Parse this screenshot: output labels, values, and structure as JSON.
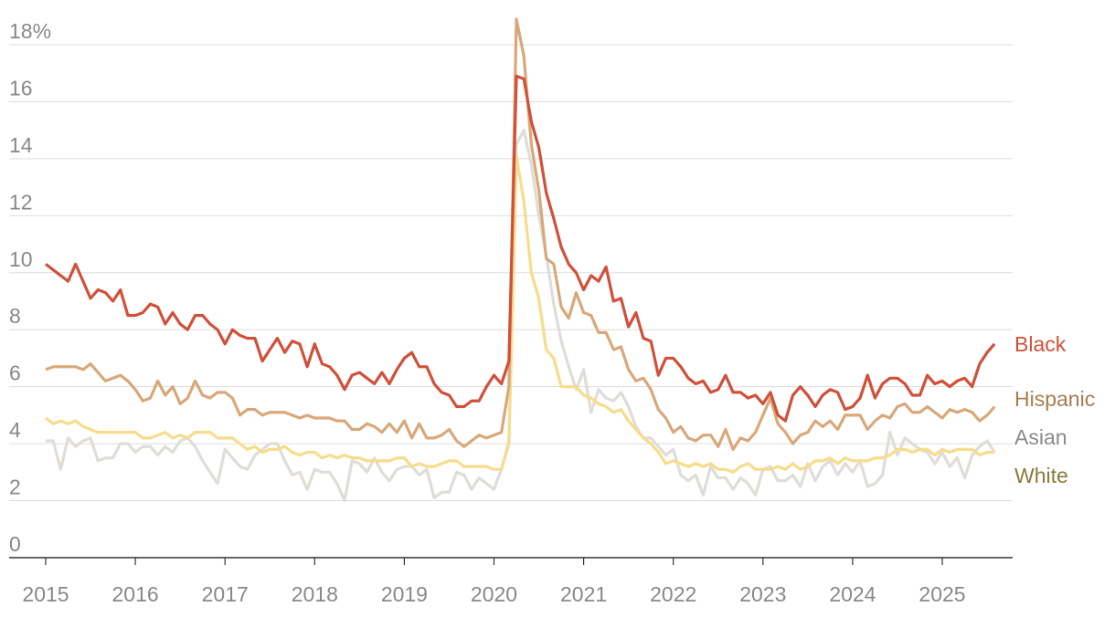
{
  "chart_data": {
    "type": "line",
    "categories": [
      "2015",
      null,
      null,
      null,
      null,
      null,
      null,
      null,
      null,
      null,
      null,
      null,
      "2016",
      null,
      null,
      null,
      null,
      null,
      null,
      null,
      null,
      null,
      null,
      null,
      "2017",
      null,
      null,
      null,
      null,
      null,
      null,
      null,
      null,
      null,
      null,
      null,
      "2018",
      null,
      null,
      null,
      null,
      null,
      null,
      null,
      null,
      null,
      null,
      null,
      "2019",
      null,
      null,
      null,
      null,
      null,
      null,
      null,
      null,
      null,
      null,
      null,
      "2020",
      null,
      null,
      null,
      null,
      null,
      null,
      null,
      null,
      null,
      null,
      null,
      "2021",
      null,
      null,
      null,
      null,
      null,
      null,
      null,
      null,
      null,
      null,
      null,
      "2022",
      null,
      null,
      null,
      null,
      null,
      null,
      null,
      null,
      null,
      null,
      null,
      "2023",
      null,
      null,
      null,
      null,
      null,
      null,
      null,
      null,
      null,
      null,
      null,
      "2024",
      null,
      null,
      null,
      null,
      null,
      null,
      null,
      null,
      null,
      null,
      null,
      "2025",
      null,
      null,
      null,
      null,
      null,
      null,
      null
    ],
    "ylim": [
      0,
      19.5
    ],
    "yticks": [
      0,
      2,
      4,
      6,
      8,
      10,
      12,
      14,
      16,
      {
        "value": 18,
        "label": "18%"
      }
    ],
    "grid": true,
    "series": [
      {
        "name": "Asian",
        "color": "#e0ddd8",
        "label_color": "#8a8a8a",
        "values": [
          4.1,
          4.1,
          3.1,
          4.2,
          3.9,
          4.1,
          4.2,
          3.4,
          3.5,
          3.5,
          4.0,
          4.0,
          3.7,
          3.9,
          3.9,
          3.6,
          3.9,
          3.7,
          4.1,
          4.2,
          3.9,
          3.4,
          3.0,
          2.6,
          3.8,
          3.5,
          3.2,
          3.1,
          3.6,
          3.8,
          4.0,
          4.0,
          3.4,
          2.9,
          3.0,
          2.4,
          3.1,
          3.0,
          3.0,
          2.6,
          2.0,
          3.4,
          3.3,
          3.0,
          3.5,
          3.0,
          2.7,
          3.1,
          3.2,
          3.2,
          2.9,
          3.1,
          2.1,
          2.3,
          2.3,
          3.0,
          2.9,
          2.4,
          2.8,
          2.6,
          2.4,
          3.1,
          4.1,
          14.5,
          15.0,
          13.8,
          12.0,
          10.6,
          8.9,
          7.6,
          6.7,
          5.9,
          6.6,
          5.1,
          5.9,
          5.6,
          5.5,
          5.8,
          5.3,
          4.6,
          4.2,
          4.2,
          3.9,
          3.6,
          3.8,
          2.9,
          2.7,
          2.9,
          2.2,
          3.2,
          2.8,
          2.8,
          2.4,
          2.8,
          2.6,
          2.2,
          3.1,
          3.2,
          2.7,
          2.7,
          2.9,
          2.5,
          3.3,
          2.7,
          3.2,
          3.4,
          2.9,
          3.3,
          3.0,
          3.4,
          2.5,
          2.6,
          2.9,
          4.4,
          3.6,
          4.2,
          4.0,
          3.8,
          3.7,
          3.3,
          3.7,
          3.2,
          3.5,
          2.8,
          3.6,
          3.9,
          4.1,
          3.7
        ]
      },
      {
        "name": "White",
        "color": "#f7dc8b",
        "label_color": "#8a7a3a",
        "values": [
          4.9,
          4.7,
          4.8,
          4.7,
          4.8,
          4.6,
          4.5,
          4.4,
          4.4,
          4.4,
          4.4,
          4.4,
          4.4,
          4.2,
          4.2,
          4.3,
          4.4,
          4.2,
          4.3,
          4.2,
          4.4,
          4.4,
          4.4,
          4.2,
          4.2,
          4.2,
          4.0,
          3.8,
          3.9,
          3.7,
          3.8,
          3.8,
          3.9,
          3.7,
          3.6,
          3.7,
          3.7,
          3.5,
          3.6,
          3.5,
          3.6,
          3.5,
          3.5,
          3.4,
          3.4,
          3.4,
          3.4,
          3.5,
          3.5,
          3.2,
          3.3,
          3.2,
          3.2,
          3.3,
          3.4,
          3.4,
          3.2,
          3.2,
          3.2,
          3.2,
          3.1,
          3.1,
          4.0,
          14.1,
          12.5,
          10.0,
          9.1,
          7.3,
          7.0,
          6.0,
          6.0,
          6.0,
          5.7,
          5.6,
          5.4,
          5.3,
          5.1,
          5.2,
          4.8,
          4.5,
          4.2,
          4.0,
          3.7,
          3.3,
          3.4,
          3.3,
          3.2,
          3.3,
          3.2,
          3.3,
          3.1,
          3.1,
          3.0,
          3.2,
          3.3,
          3.1,
          3.1,
          3.1,
          3.2,
          3.1,
          3.3,
          3.1,
          3.2,
          3.4,
          3.4,
          3.5,
          3.3,
          3.5,
          3.4,
          3.4,
          3.4,
          3.5,
          3.5,
          3.6,
          3.8,
          3.8,
          3.7,
          3.8,
          3.8,
          3.6,
          3.8,
          3.7,
          3.8,
          3.8,
          3.8,
          3.6,
          3.7,
          3.7
        ]
      },
      {
        "name": "Hispanic",
        "color": "#d9a87a",
        "label_color": "#a67c52",
        "values": [
          6.6,
          6.7,
          6.7,
          6.7,
          6.7,
          6.6,
          6.8,
          6.5,
          6.2,
          6.3,
          6.4,
          6.2,
          5.9,
          5.5,
          5.6,
          6.2,
          5.7,
          6.0,
          5.4,
          5.6,
          6.2,
          5.7,
          5.6,
          5.8,
          5.8,
          5.6,
          5.0,
          5.2,
          5.2,
          5.0,
          5.1,
          5.1,
          5.1,
          5.0,
          4.9,
          5.0,
          4.9,
          4.9,
          4.9,
          4.8,
          4.8,
          4.5,
          4.5,
          4.7,
          4.6,
          4.4,
          4.7,
          4.4,
          4.8,
          4.2,
          4.7,
          4.2,
          4.2,
          4.3,
          4.5,
          4.1,
          3.9,
          4.1,
          4.3,
          4.2,
          4.3,
          4.4,
          6.0,
          18.9,
          17.6,
          14.5,
          12.9,
          10.5,
          10.3,
          8.8,
          8.4,
          9.3,
          8.6,
          8.5,
          7.9,
          7.9,
          7.3,
          7.4,
          6.6,
          6.2,
          6.3,
          5.9,
          5.2,
          4.9,
          4.4,
          4.6,
          4.2,
          4.1,
          4.3,
          4.3,
          3.9,
          4.5,
          3.8,
          4.2,
          4.1,
          4.4,
          5.0,
          5.6,
          4.7,
          4.4,
          4.0,
          4.3,
          4.4,
          4.8,
          4.6,
          4.8,
          4.5,
          5.0,
          5.0,
          5.0,
          4.5,
          4.8,
          5.0,
          4.9,
          5.3,
          5.4,
          5.1,
          5.1,
          5.3,
          5.1,
          4.9,
          5.2,
          5.1,
          5.2,
          5.1,
          4.8,
          5.0,
          5.3
        ]
      },
      {
        "name": "Black",
        "color": "#d1503a",
        "label_color": "#d1503a",
        "values": [
          10.3,
          10.1,
          9.9,
          9.7,
          10.3,
          9.7,
          9.1,
          9.4,
          9.3,
          9.0,
          9.4,
          8.5,
          8.5,
          8.6,
          8.9,
          8.8,
          8.2,
          8.6,
          8.2,
          8.0,
          8.5,
          8.5,
          8.2,
          8.0,
          7.5,
          8.0,
          7.8,
          7.7,
          7.7,
          6.9,
          7.3,
          7.7,
          7.2,
          7.6,
          7.5,
          6.7,
          7.5,
          6.8,
          6.7,
          6.4,
          5.9,
          6.4,
          6.5,
          6.3,
          6.1,
          6.5,
          6.1,
          6.6,
          7.0,
          7.2,
          6.7,
          6.7,
          6.1,
          5.8,
          5.7,
          5.3,
          5.3,
          5.5,
          5.5,
          6.0,
          6.4,
          6.1,
          6.9,
          16.9,
          16.8,
          15.3,
          14.4,
          12.8,
          11.9,
          10.9,
          10.3,
          10.0,
          9.4,
          9.9,
          9.7,
          10.2,
          9.0,
          9.1,
          8.1,
          8.6,
          7.7,
          7.6,
          6.4,
          7.0,
          7.0,
          6.7,
          6.3,
          6.1,
          6.2,
          5.8,
          5.9,
          6.4,
          5.8,
          5.8,
          5.6,
          5.7,
          5.4,
          5.8,
          5.0,
          4.8,
          5.7,
          6.0,
          5.7,
          5.3,
          5.7,
          5.9,
          5.8,
          5.2,
          5.3,
          5.6,
          6.4,
          5.6,
          6.1,
          6.3,
          6.3,
          6.1,
          5.7,
          5.7,
          6.4,
          6.1,
          6.2,
          6.0,
          6.2,
          6.3,
          6.0,
          6.8,
          7.2,
          7.5
        ]
      }
    ]
  }
}
